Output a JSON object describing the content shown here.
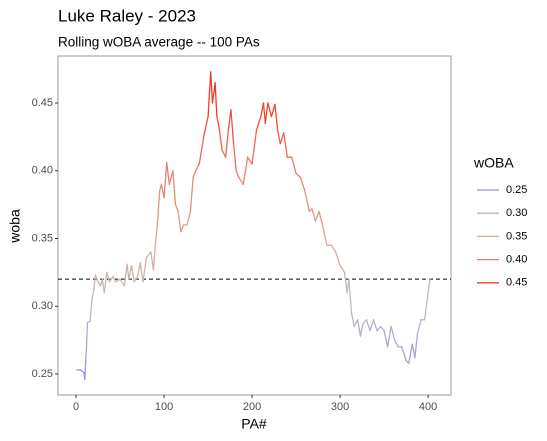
{
  "chart_data": {
    "type": "line",
    "title": "Luke Raley - 2023",
    "subtitle": "Rolling wOBA average -- 100 PAs",
    "x_label": "PA#",
    "y_label": "woba",
    "xlim": [
      -20.5,
      426
    ],
    "ylim": [
      0.2345,
      0.4847
    ],
    "xticks": [
      0,
      100,
      200,
      300,
      400
    ],
    "yticks": [
      0.25,
      {
        "value": 0.3,
        "label": "0.30"
      },
      0.35,
      {
        "value": 0.4,
        "label": "0.40"
      },
      0.45
    ],
    "hline": 0.32,
    "legend_title": "wOBA",
    "color_scale": [
      {
        "value": 0.25,
        "label": "0.25",
        "color": "#a48fd8"
      },
      {
        "value": 0.3,
        "label": "0.30",
        "color": "#c2bcc2"
      },
      {
        "value": 0.35,
        "label": "0.35",
        "color": "#daa795"
      },
      {
        "value": 0.4,
        "label": "0.40",
        "color": "#e9806a"
      },
      {
        "value": 0.45,
        "label": "0.45",
        "color": "#ef3b26"
      }
    ],
    "series": [
      {
        "name": "woba",
        "x": [
          1,
          5,
          9,
          10,
          11,
          12,
          13,
          16,
          18,
          20,
          22,
          25,
          28,
          30,
          32,
          35,
          38,
          42,
          45,
          50,
          55,
          58,
          60,
          63,
          66,
          70,
          73,
          76,
          80,
          85,
          88,
          90,
          93,
          95,
          97,
          100,
          103,
          106,
          110,
          113,
          116,
          119,
          122,
          126,
          130,
          133,
          136,
          140,
          145,
          150,
          153,
          155,
          158,
          160,
          163,
          166,
          170,
          173,
          176,
          179,
          182,
          185,
          190,
          195,
          200,
          205,
          210,
          213,
          215,
          218,
          222,
          226,
          229,
          232,
          236,
          240,
          245,
          250,
          255,
          260,
          265,
          268,
          272,
          276,
          280,
          285,
          290,
          295,
          300,
          305,
          308,
          310,
          313,
          316,
          320,
          323,
          326,
          330,
          334,
          338,
          342,
          346,
          350,
          354,
          358,
          362,
          366,
          370,
          375,
          378,
          382,
          385,
          388,
          392,
          396,
          399,
          401,
          402
        ],
        "values": [
          0.253,
          0.253,
          0.251,
          0.246,
          0.26,
          0.272,
          0.288,
          0.289,
          0.305,
          0.311,
          0.323,
          0.318,
          0.315,
          0.32,
          0.31,
          0.325,
          0.318,
          0.322,
          0.318,
          0.32,
          0.315,
          0.331,
          0.32,
          0.33,
          0.318,
          0.322,
          0.332,
          0.318,
          0.336,
          0.34,
          0.327,
          0.345,
          0.365,
          0.385,
          0.39,
          0.38,
          0.406,
          0.39,
          0.4,
          0.375,
          0.37,
          0.355,
          0.36,
          0.36,
          0.37,
          0.395,
          0.4,
          0.405,
          0.425,
          0.44,
          0.473,
          0.45,
          0.465,
          0.44,
          0.43,
          0.415,
          0.41,
          0.43,
          0.445,
          0.42,
          0.4,
          0.395,
          0.39,
          0.41,
          0.405,
          0.43,
          0.44,
          0.45,
          0.435,
          0.45,
          0.44,
          0.449,
          0.43,
          0.42,
          0.428,
          0.41,
          0.41,
          0.398,
          0.395,
          0.385,
          0.37,
          0.372,
          0.363,
          0.37,
          0.36,
          0.345,
          0.345,
          0.34,
          0.33,
          0.325,
          0.31,
          0.32,
          0.295,
          0.285,
          0.29,
          0.278,
          0.287,
          0.29,
          0.282,
          0.29,
          0.282,
          0.285,
          0.282,
          0.27,
          0.285,
          0.275,
          0.27,
          0.27,
          0.26,
          0.258,
          0.272,
          0.262,
          0.28,
          0.29,
          0.29,
          0.305,
          0.315,
          0.32
        ]
      }
    ]
  }
}
